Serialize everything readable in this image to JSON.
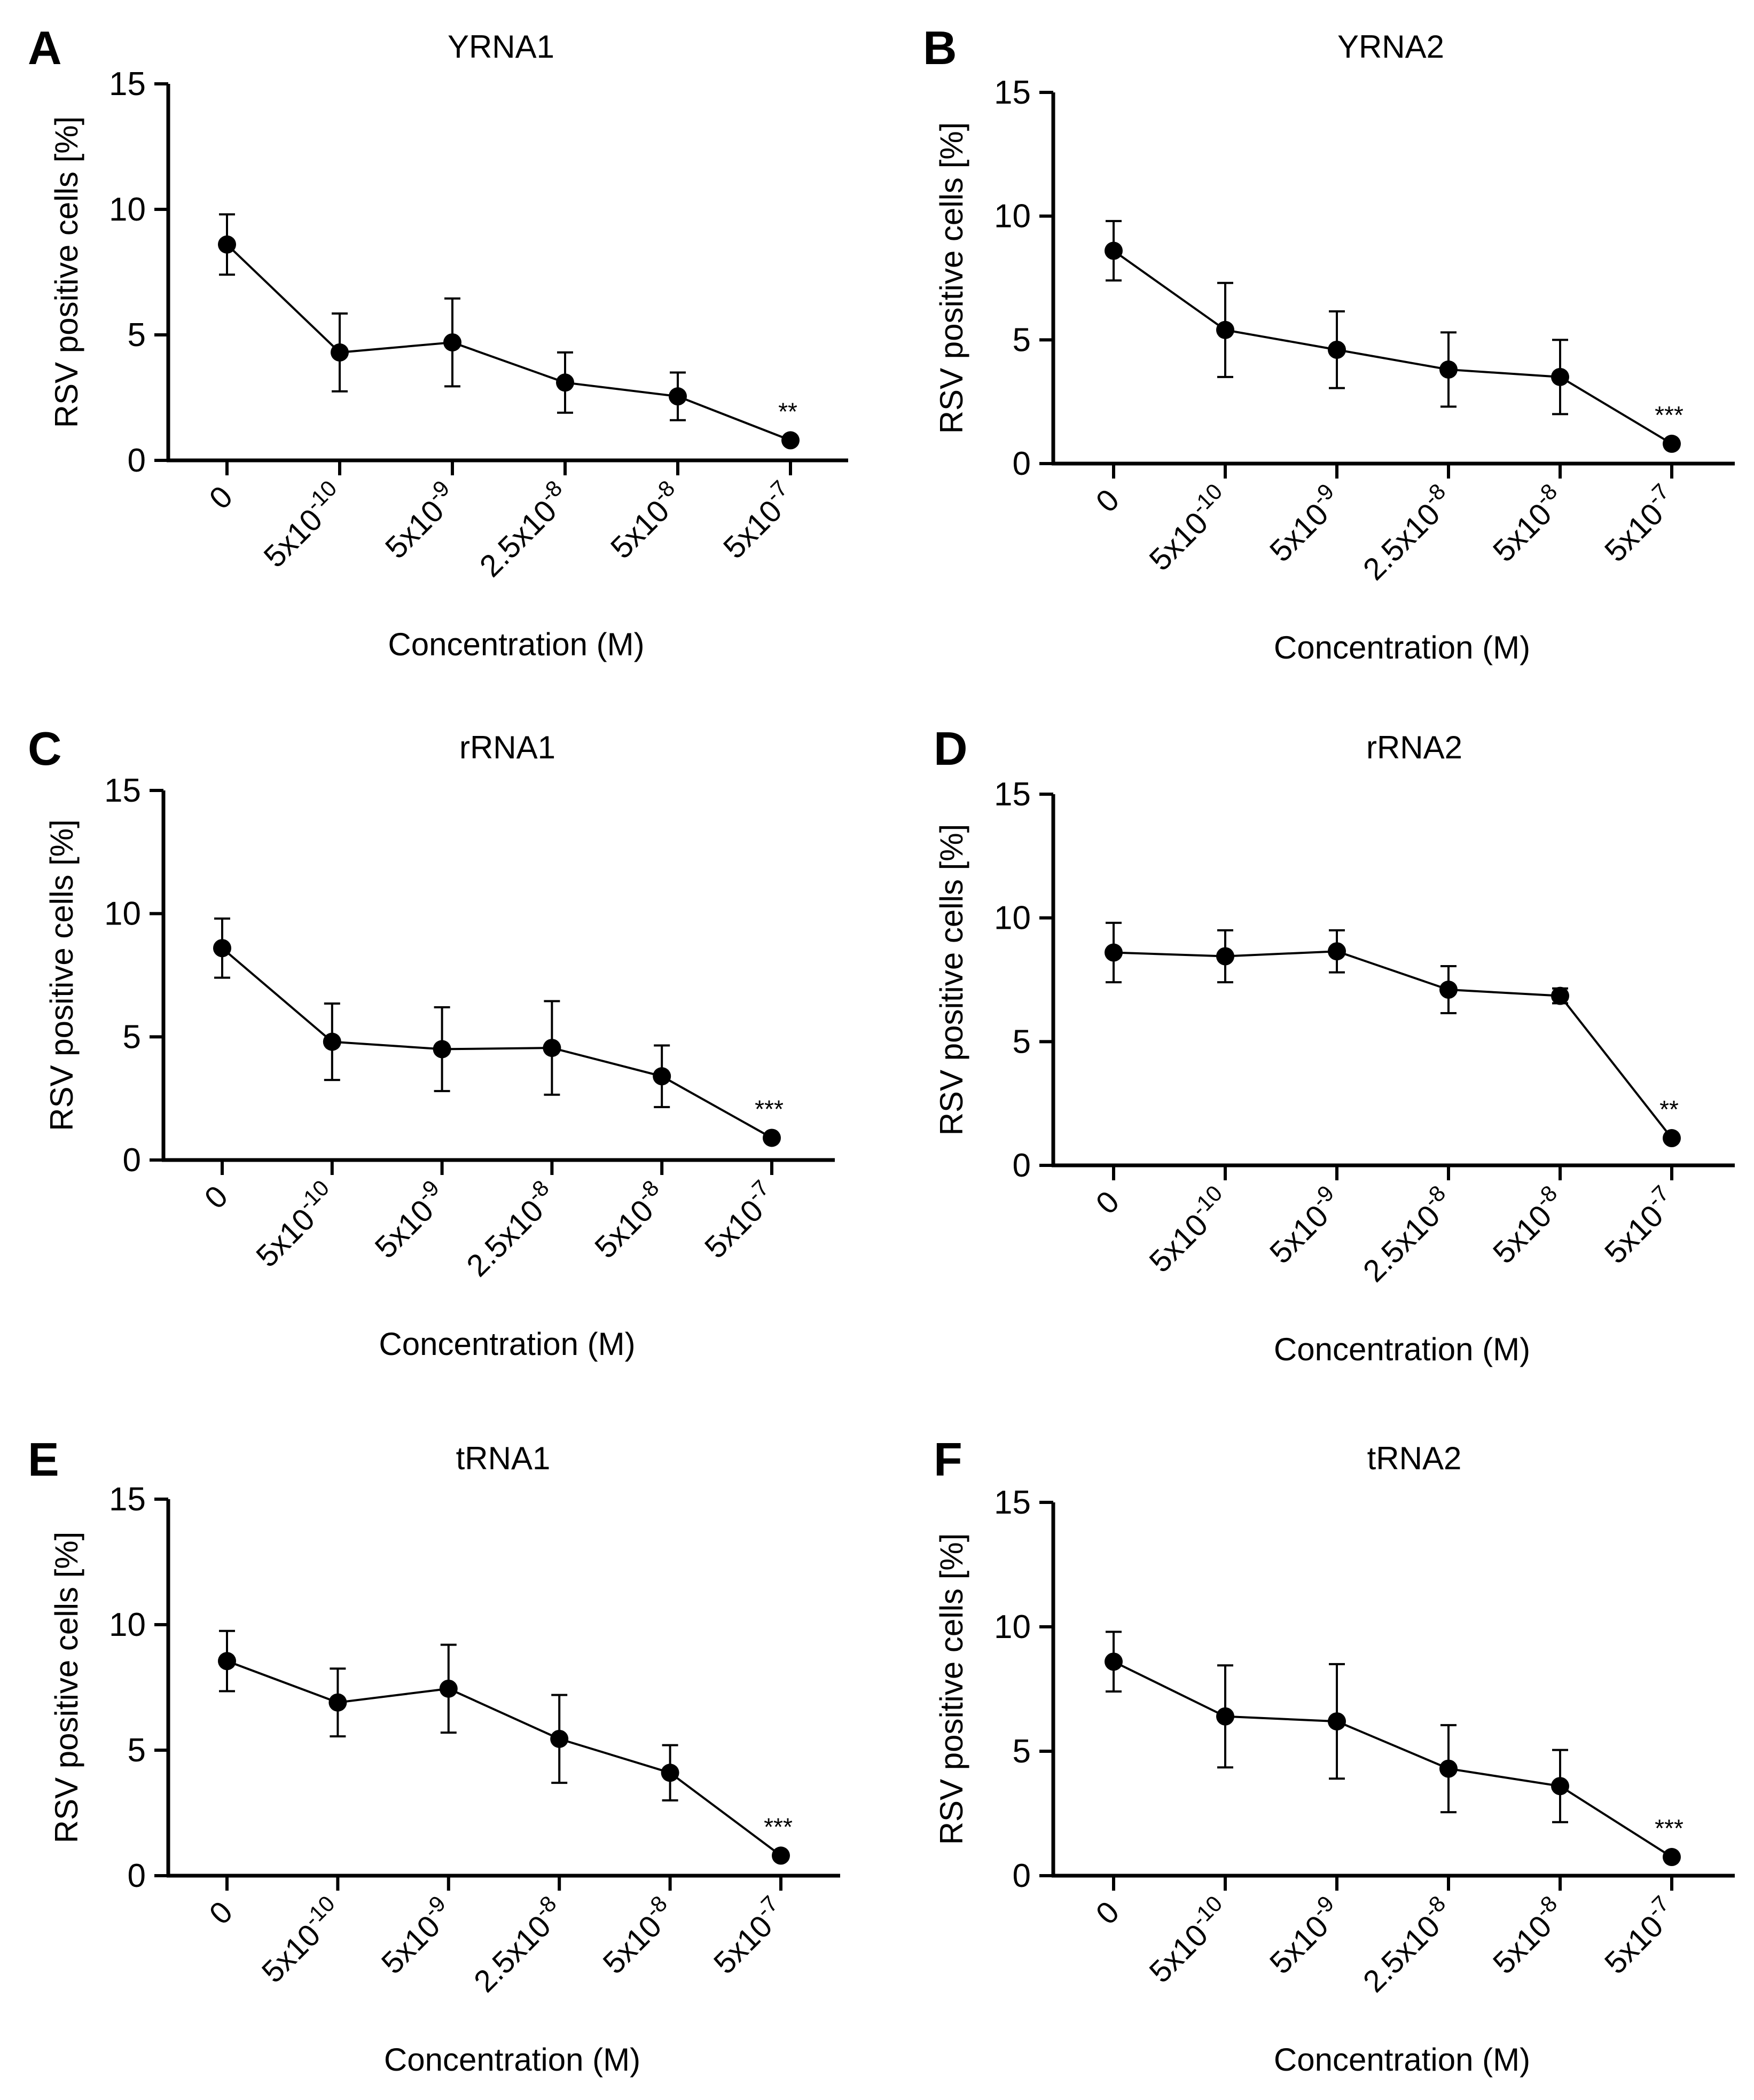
{
  "figure": {
    "xlabel": "Concentration (M)",
    "ylabel": "RSV positive cells [%]"
  },
  "chart_data": [
    {
      "panel": "A",
      "type": "line",
      "title": "YRNA1",
      "xlabel": "Concentration (M)",
      "ylabel": "RSV positive cells [%]",
      "categories": [
        {
          "base": "0",
          "exp": ""
        },
        {
          "base": "5x10",
          "exp": "-10"
        },
        {
          "base": "5x10",
          "exp": "-9"
        },
        {
          "base": "2.5x10",
          "exp": "-8"
        },
        {
          "base": "5x10",
          "exp": "-8"
        },
        {
          "base": "5x10",
          "exp": "-7"
        }
      ],
      "values": [
        8.6,
        4.3,
        4.7,
        3.1,
        2.55,
        0.8
      ],
      "errors": [
        1.2,
        1.55,
        1.75,
        1.2,
        0.95,
        0.1
      ],
      "ylim": [
        0,
        15
      ],
      "yticks": [
        "0",
        "5",
        "10",
        "15"
      ],
      "significance": "**"
    },
    {
      "panel": "B",
      "type": "line",
      "title": "YRNA2",
      "xlabel": "Concentration (M)",
      "ylabel": "RSV positive cells [%]",
      "categories": [
        {
          "base": "0",
          "exp": ""
        },
        {
          "base": "5x10",
          "exp": "-10"
        },
        {
          "base": "5x10",
          "exp": "-9"
        },
        {
          "base": "2.5x10",
          "exp": "-8"
        },
        {
          "base": "5x10",
          "exp": "-8"
        },
        {
          "base": "5x10",
          "exp": "-7"
        }
      ],
      "values": [
        8.6,
        5.4,
        4.6,
        3.8,
        3.5,
        0.8
      ],
      "errors": [
        1.2,
        1.9,
        1.55,
        1.5,
        1.5,
        0.1
      ],
      "ylim": [
        0,
        15
      ],
      "yticks": [
        "0",
        "5",
        "10",
        "15"
      ],
      "significance": "***"
    },
    {
      "panel": "C",
      "type": "line",
      "title": "rRNA1",
      "xlabel": "Concentration (M)",
      "ylabel": "RSV positive cells [%]",
      "categories": [
        {
          "base": "0",
          "exp": ""
        },
        {
          "base": "5x10",
          "exp": "-10"
        },
        {
          "base": "5x10",
          "exp": "-9"
        },
        {
          "base": "2.5x10",
          "exp": "-8"
        },
        {
          "base": "5x10",
          "exp": "-8"
        },
        {
          "base": "5x10",
          "exp": "-7"
        }
      ],
      "values": [
        8.6,
        4.8,
        4.5,
        4.55,
        3.4,
        0.9
      ],
      "errors": [
        1.2,
        1.55,
        1.7,
        1.9,
        1.25,
        0.1
      ],
      "ylim": [
        0,
        15
      ],
      "yticks": [
        "0",
        "5",
        "10",
        "15"
      ],
      "significance": "***"
    },
    {
      "panel": "D",
      "type": "line",
      "title": "rRNA2",
      "xlabel": "Concentration (M)",
      "ylabel": "RSV positive cells [%]",
      "categories": [
        {
          "base": "0",
          "exp": ""
        },
        {
          "base": "5x10",
          "exp": "-10"
        },
        {
          "base": "5x10",
          "exp": "-9"
        },
        {
          "base": "2.5x10",
          "exp": "-8"
        },
        {
          "base": "5x10",
          "exp": "-8"
        },
        {
          "base": "5x10",
          "exp": "-7"
        }
      ],
      "values": [
        8.6,
        8.45,
        8.65,
        7.1,
        6.85,
        1.1
      ],
      "errors": [
        1.2,
        1.05,
        0.85,
        0.95,
        0.3,
        0.1
      ],
      "ylim": [
        0,
        15
      ],
      "yticks": [
        "0",
        "5",
        "10",
        "15"
      ],
      "significance": "**"
    },
    {
      "panel": "E",
      "type": "line",
      "title": "tRNA1",
      "xlabel": "Concentration (M)",
      "ylabel": "RSV positive cells [%]",
      "categories": [
        {
          "base": "0",
          "exp": ""
        },
        {
          "base": "5x10",
          "exp": "-10"
        },
        {
          "base": "5x10",
          "exp": "-9"
        },
        {
          "base": "2.5x10",
          "exp": "-8"
        },
        {
          "base": "5x10",
          "exp": "-8"
        },
        {
          "base": "5x10",
          "exp": "-7"
        }
      ],
      "values": [
        8.55,
        6.9,
        7.45,
        5.45,
        4.1,
        0.8
      ],
      "errors": [
        1.2,
        1.35,
        1.75,
        1.75,
        1.1,
        0.1
      ],
      "ylim": [
        0,
        15
      ],
      "yticks": [
        "0",
        "5",
        "10",
        "15"
      ],
      "significance": "***"
    },
    {
      "panel": "F",
      "type": "line",
      "title": "tRNA2",
      "xlabel": "Concentration (M)",
      "ylabel": "RSV positive cells [%]",
      "categories": [
        {
          "base": "0",
          "exp": ""
        },
        {
          "base": "5x10",
          "exp": "-10"
        },
        {
          "base": "5x10",
          "exp": "-9"
        },
        {
          "base": "2.5x10",
          "exp": "-8"
        },
        {
          "base": "5x10",
          "exp": "-8"
        },
        {
          "base": "5x10",
          "exp": "-7"
        }
      ],
      "values": [
        8.6,
        6.4,
        6.2,
        4.3,
        3.6,
        0.75
      ],
      "errors": [
        1.2,
        2.05,
        2.3,
        1.75,
        1.45,
        0.1
      ],
      "ylim": [
        0,
        15
      ],
      "yticks": [
        "0",
        "5",
        "10",
        "15"
      ],
      "significance": "***"
    }
  ]
}
